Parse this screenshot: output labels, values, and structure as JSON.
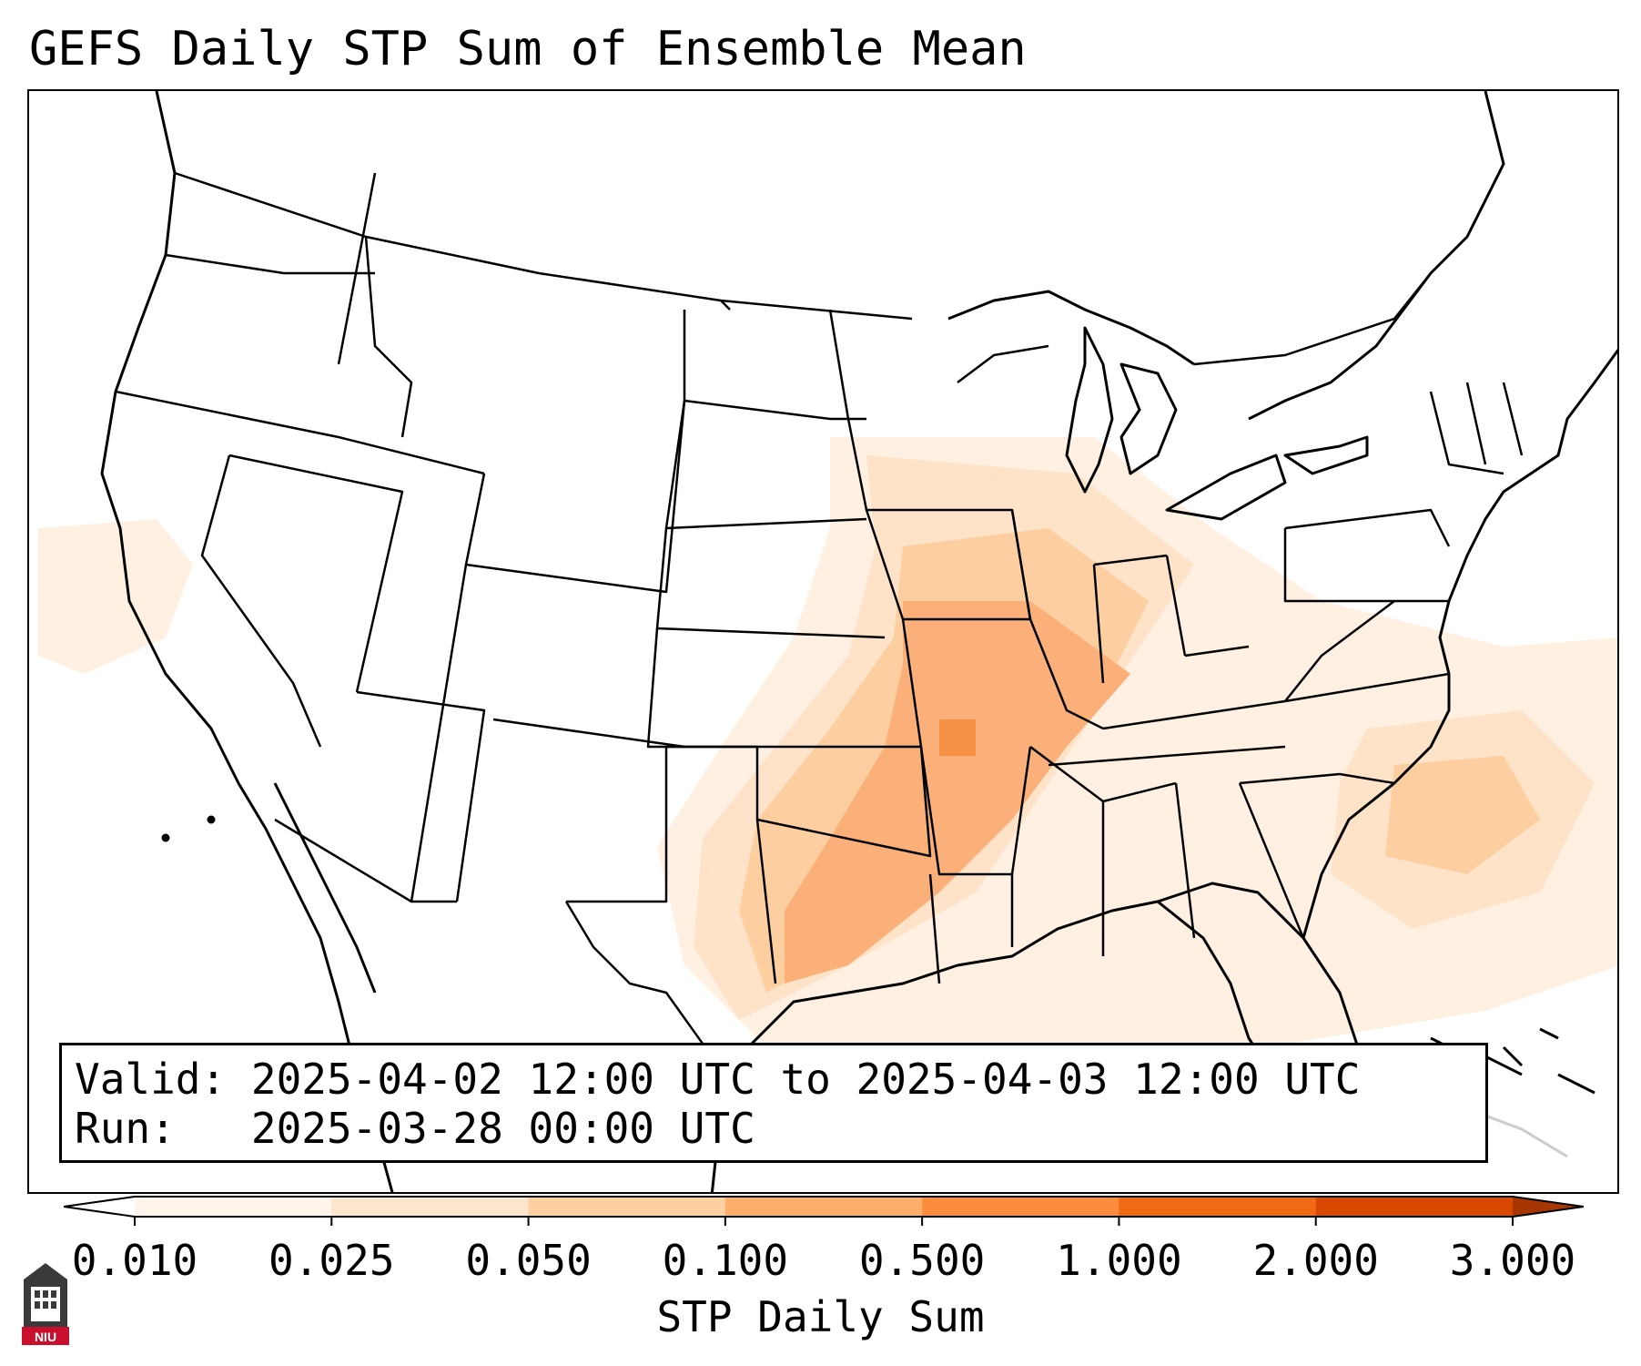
{
  "title": "GEFS Daily STP Sum of Ensemble Mean",
  "info": {
    "valid_label": "Valid:",
    "valid_value": "2025-04-02 12:00 UTC to 2025-04-03 12:00 UTC",
    "run_label": "Run:",
    "run_value": "2025-03-28 00:00 UTC"
  },
  "colorbar": {
    "label": "STP Daily Sum",
    "ticks": [
      "0.010",
      "0.025",
      "0.050",
      "0.100",
      "0.500",
      "1.000",
      "2.000",
      "3.000"
    ],
    "colors": [
      "#fff5eb",
      "#fee6ce",
      "#fdd0a2",
      "#fdae6b",
      "#fd8d3c",
      "#f16913",
      "#d94801",
      "#a63603"
    ]
  },
  "logo": {
    "text": "NIU",
    "icon": "niu-logo-icon"
  },
  "map": {
    "region": "CONUS",
    "features": [
      "state-borders",
      "coastlines",
      "great-lakes"
    ],
    "maximum_area": "central Arkansas",
    "max_category": "0.500"
  }
}
